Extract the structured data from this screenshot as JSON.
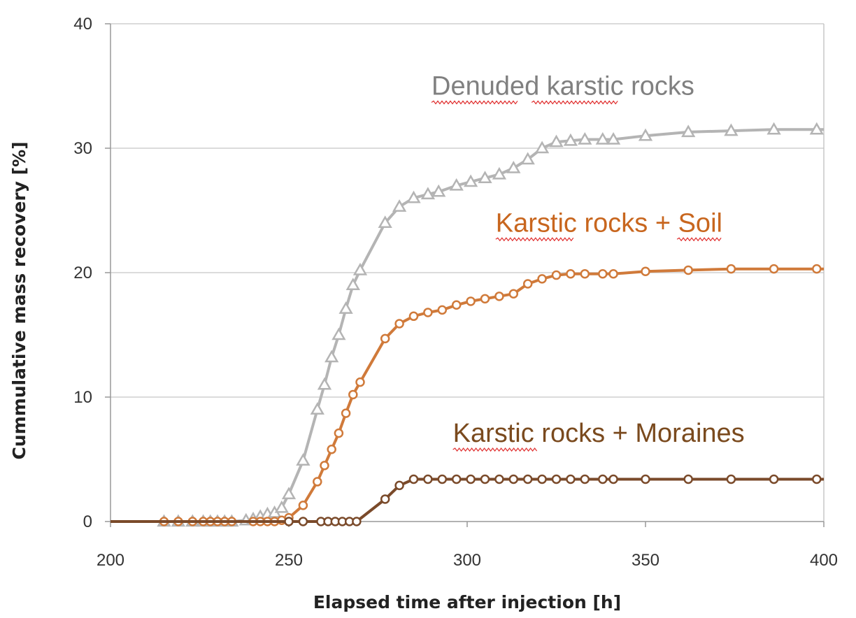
{
  "chart_data": {
    "type": "line",
    "xlabel": "Elapsed time after injection [h]",
    "ylabel": "Cummulative mass recovery [%]",
    "xlim": [
      200,
      400
    ],
    "ylim": [
      0,
      40
    ],
    "xticks": [
      200,
      250,
      300,
      350,
      400
    ],
    "yticks": [
      0,
      10,
      20,
      30,
      40
    ],
    "grid": "horizontal",
    "legend": "none",
    "series": [
      {
        "name": "Denuded karstic rocks",
        "color": "#b4b4b4",
        "marker": "triangle",
        "x": [
          200,
          215,
          219,
          223,
          226,
          228,
          230,
          232,
          234,
          238,
          240,
          242,
          244,
          246,
          248,
          250,
          254,
          258,
          260,
          262,
          264,
          266,
          268,
          270,
          277,
          281,
          285,
          289,
          292,
          297,
          301,
          305,
          309,
          313,
          317,
          321,
          325,
          329,
          333,
          338,
          341,
          350,
          362,
          374,
          386,
          398,
          400
        ],
        "y": [
          0,
          0,
          0,
          0,
          0,
          0,
          0,
          0,
          0,
          0.1,
          0.2,
          0.4,
          0.6,
          0.7,
          1.1,
          2.2,
          4.9,
          9.0,
          11.0,
          13.2,
          15.0,
          17.1,
          19.0,
          20.2,
          24.0,
          25.3,
          26.0,
          26.3,
          26.5,
          27.0,
          27.3,
          27.6,
          27.9,
          28.4,
          29.1,
          30.0,
          30.5,
          30.6,
          30.7,
          30.7,
          30.7,
          31.0,
          31.3,
          31.4,
          31.5,
          31.5,
          31.5
        ]
      },
      {
        "name": "Karstic rocks + Soil",
        "color": "#d07a3a",
        "marker": "circle",
        "x": [
          200,
          215,
          219,
          223,
          226,
          228,
          230,
          232,
          234,
          240,
          242,
          244,
          246,
          248,
          250,
          254,
          258,
          260,
          262,
          264,
          266,
          268,
          270,
          277,
          281,
          285,
          289,
          293,
          297,
          301,
          305,
          309,
          313,
          317,
          321,
          325,
          329,
          333,
          338,
          341,
          350,
          362,
          374,
          386,
          398,
          400
        ],
        "y": [
          0,
          0,
          0,
          0,
          0,
          0,
          0,
          0,
          0,
          0,
          0,
          0,
          0,
          0.1,
          0.3,
          1.3,
          3.2,
          4.5,
          5.8,
          7.1,
          8.7,
          10.2,
          11.2,
          14.7,
          15.9,
          16.5,
          16.8,
          17.0,
          17.4,
          17.7,
          17.9,
          18.1,
          18.3,
          19.1,
          19.5,
          19.8,
          19.9,
          19.9,
          19.9,
          19.9,
          20.1,
          20.2,
          20.3,
          20.3,
          20.3,
          20.3
        ]
      },
      {
        "name": "Karstic rocks + Moraines",
        "color": "#7a4a2a",
        "marker": "circle",
        "x": [
          200,
          250,
          254,
          259,
          261,
          263,
          265,
          267,
          269,
          277,
          281,
          285,
          289,
          293,
          297,
          301,
          305,
          309,
          313,
          317,
          321,
          325,
          329,
          333,
          338,
          341,
          350,
          362,
          374,
          386,
          398,
          400
        ],
        "y": [
          0,
          0,
          0,
          0,
          0,
          0,
          0,
          0,
          0,
          1.8,
          2.9,
          3.4,
          3.4,
          3.4,
          3.4,
          3.4,
          3.4,
          3.4,
          3.4,
          3.4,
          3.4,
          3.4,
          3.4,
          3.4,
          3.4,
          3.4,
          3.4,
          3.4,
          3.4,
          3.4,
          3.4,
          3.4
        ]
      }
    ],
    "annotations": [
      {
        "text": "Denuded karstic rocks",
        "series": "Denuded karstic rocks",
        "color": "#808080",
        "x": 290,
        "y": 34.3
      },
      {
        "text": "Karstic rocks + Soil",
        "series": "Karstic rocks + Soil",
        "color": "#c8661e",
        "x": 308,
        "y": 23.3
      },
      {
        "text": "Karstic rocks + Moraines",
        "series": "Karstic rocks + Moraines",
        "color": "#7a4a1e",
        "x": 296,
        "y": 6.4
      }
    ]
  }
}
